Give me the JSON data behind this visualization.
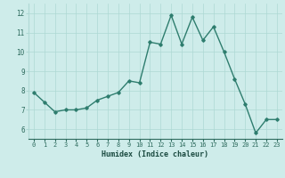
{
  "x": [
    0,
    1,
    2,
    3,
    4,
    5,
    6,
    7,
    8,
    9,
    10,
    11,
    12,
    13,
    14,
    15,
    16,
    17,
    18,
    19,
    20,
    21,
    22,
    23
  ],
  "y": [
    7.9,
    7.4,
    6.9,
    7.0,
    7.0,
    7.1,
    7.5,
    7.7,
    7.9,
    8.5,
    8.4,
    10.5,
    10.4,
    11.9,
    10.4,
    11.8,
    10.6,
    11.3,
    10.0,
    8.6,
    7.3,
    5.8,
    6.5,
    6.5
  ],
  "xlim": [
    -0.5,
    23.5
  ],
  "ylim": [
    5.5,
    12.5
  ],
  "yticks": [
    6,
    7,
    8,
    9,
    10,
    11,
    12
  ],
  "xticks": [
    0,
    1,
    2,
    3,
    4,
    5,
    6,
    7,
    8,
    9,
    10,
    11,
    12,
    13,
    14,
    15,
    16,
    17,
    18,
    19,
    20,
    21,
    22,
    23
  ],
  "xlabel": "Humidex (Indice chaleur)",
  "line_color": "#2e7d6e",
  "marker": "D",
  "marker_size": 1.8,
  "background_color": "#ceecea",
  "grid_color": "#aed8d4",
  "tick_color": "#2e6b5e",
  "label_color": "#1a4a40",
  "line_width": 1.0
}
